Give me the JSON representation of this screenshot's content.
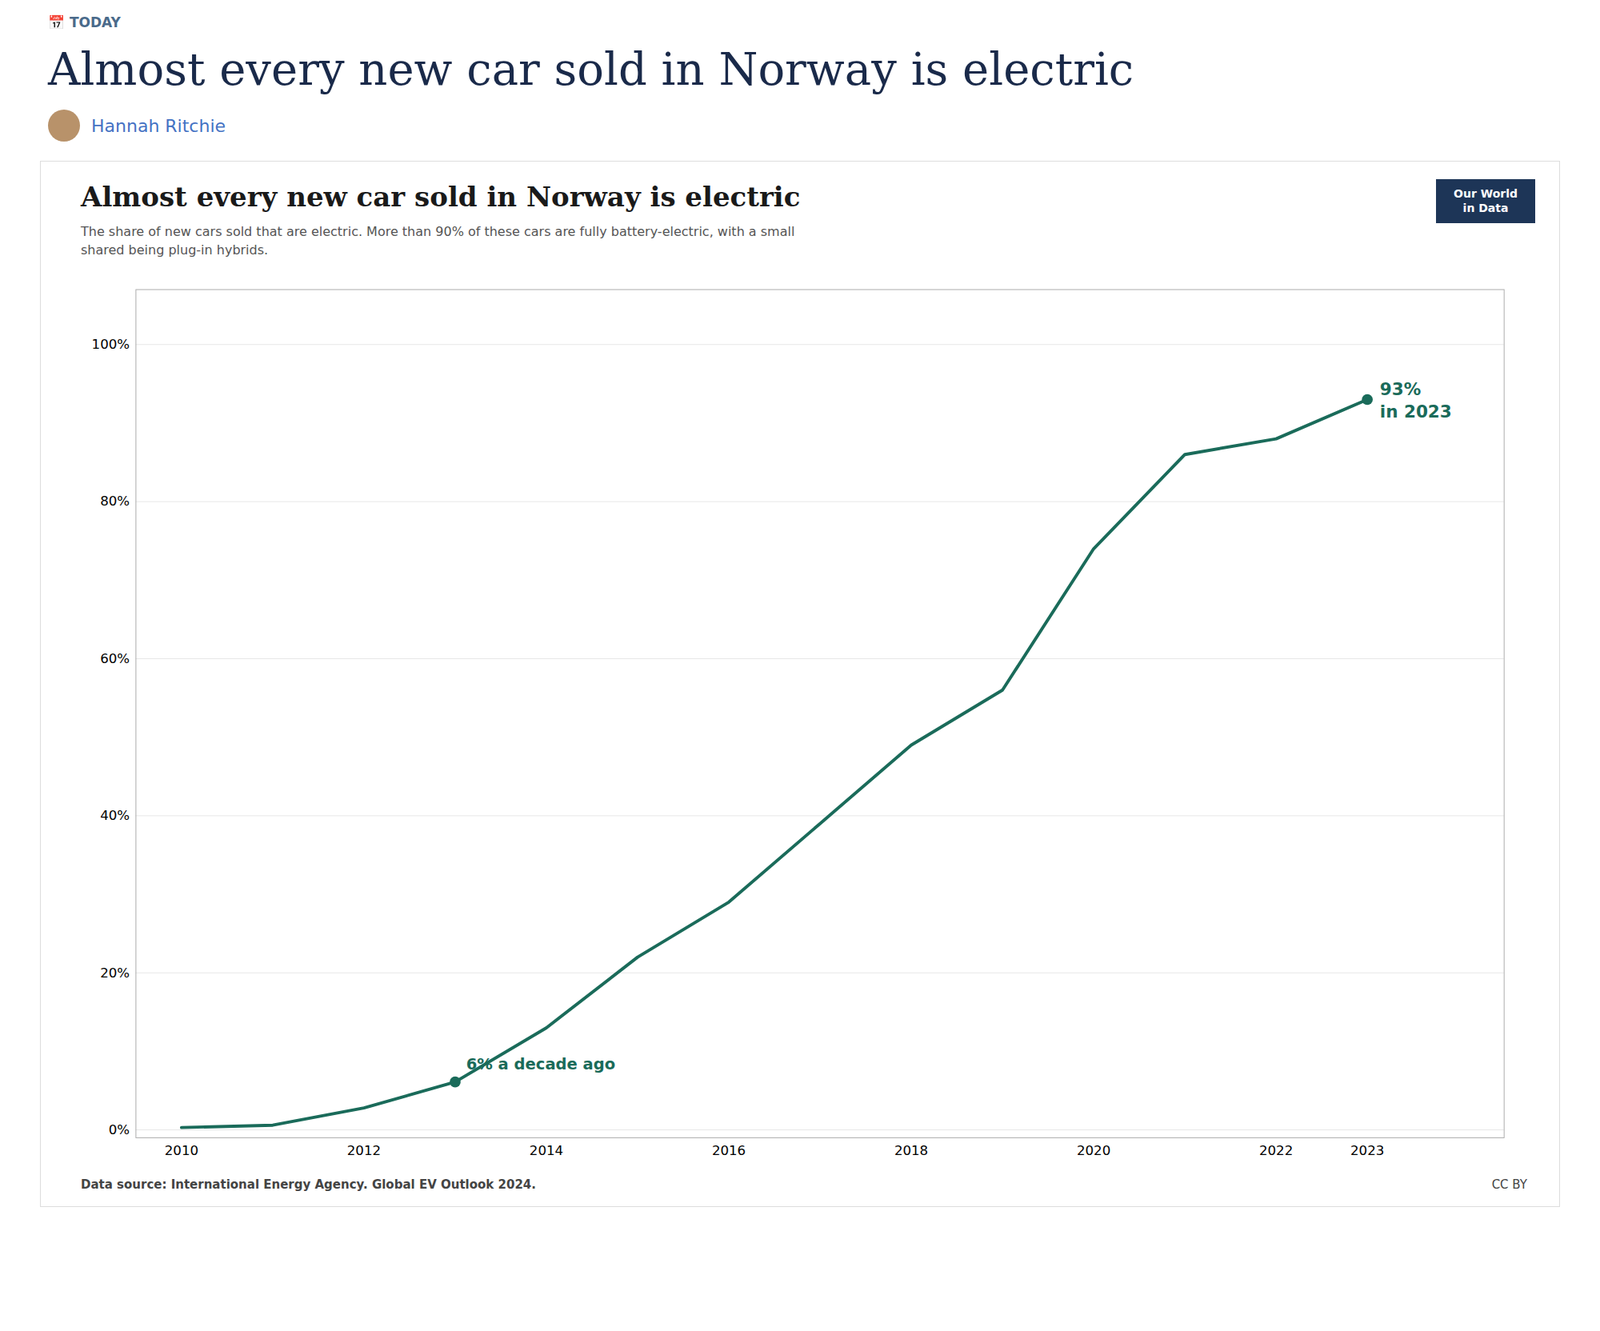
{
  "page": {
    "label": "📅 TODAY",
    "title": "Almost every new car sold in Norway is electric",
    "author": "Hannah Ritchie"
  },
  "chart_data": {
    "type": "line",
    "title": "Almost every new car sold in Norway is electric",
    "subtitle": "The share of new cars sold that are electric. More than 90% of these cars are fully battery-electric, with a small\nshared being plug-in hybrids.",
    "logo": "Our World\nin Data",
    "source": "Data source: International Energy Agency. Global EV Outlook 2024.",
    "credit": "CC BY",
    "x": [
      2010,
      2011,
      2012,
      2013,
      2014,
      2015,
      2016,
      2017,
      2018,
      2019,
      2020,
      2021,
      2022,
      2023
    ],
    "values": [
      0.3,
      0.6,
      2.8,
      6.1,
      13.0,
      22.0,
      29.0,
      39.0,
      49.0,
      56.0,
      74.0,
      86.0,
      88.0,
      93.0
    ],
    "color": "#1a6b5a",
    "xlim": [
      2009.5,
      2024.5
    ],
    "xticks": [
      2010,
      2012,
      2014,
      2016,
      2018,
      2020,
      2022,
      2023
    ],
    "ylim": [
      -1,
      107
    ],
    "yticks": [
      {
        "value": 0,
        "label": "0%"
      },
      {
        "value": 20,
        "label": "20%"
      },
      {
        "value": 40,
        "label": "40%"
      },
      {
        "value": 60,
        "label": "60%"
      },
      {
        "value": 80,
        "label": "80%"
      },
      {
        "value": 100,
        "label": "100%"
      }
    ],
    "grid": true,
    "annotations": [
      {
        "x": 2013,
        "y": 6.1,
        "text": "6% a decade ago"
      },
      {
        "x": 2023,
        "y": 93.0,
        "text": "93%\nin 2023"
      }
    ]
  }
}
